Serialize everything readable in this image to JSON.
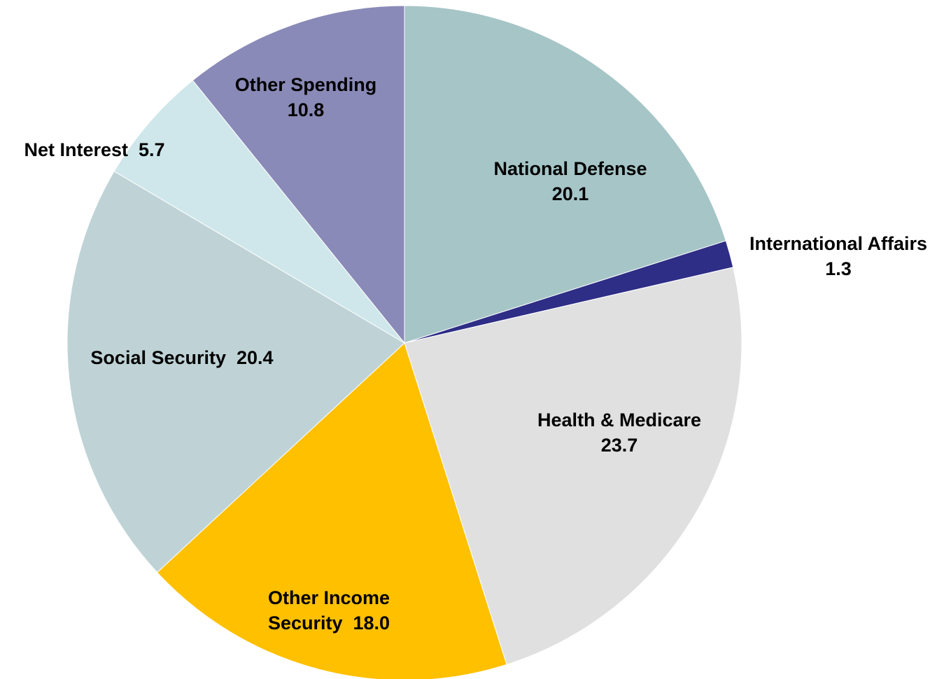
{
  "chart_data": {
    "type": "pie",
    "title": "",
    "start_angle_deg": 0,
    "direction": "clockwise",
    "legend": "none",
    "slices": [
      {
        "name": "National Defense",
        "value": 20.1,
        "value_label": "20.1",
        "color": "#A6C5C7"
      },
      {
        "name": "International Affairs",
        "value": 1.3,
        "value_label": "1.3",
        "color": "#2E2E87"
      },
      {
        "name": "Health & Medicare",
        "value": 23.7,
        "value_label": "23.7",
        "color": "#E0E0E0"
      },
      {
        "name": "Other Income Security",
        "value": 18.0,
        "value_label": "18.0",
        "color": "#FFC000"
      },
      {
        "name": "Social Security",
        "value": 20.4,
        "value_label": "20.4",
        "color": "#BFD3D6"
      },
      {
        "name": "Net Interest",
        "value": 5.7,
        "value_label": "5.7",
        "color": "#CFE7EA"
      },
      {
        "name": "Other Spending",
        "value": 10.8,
        "value_label": "10.8",
        "color": "#8A8AB8"
      }
    ]
  }
}
